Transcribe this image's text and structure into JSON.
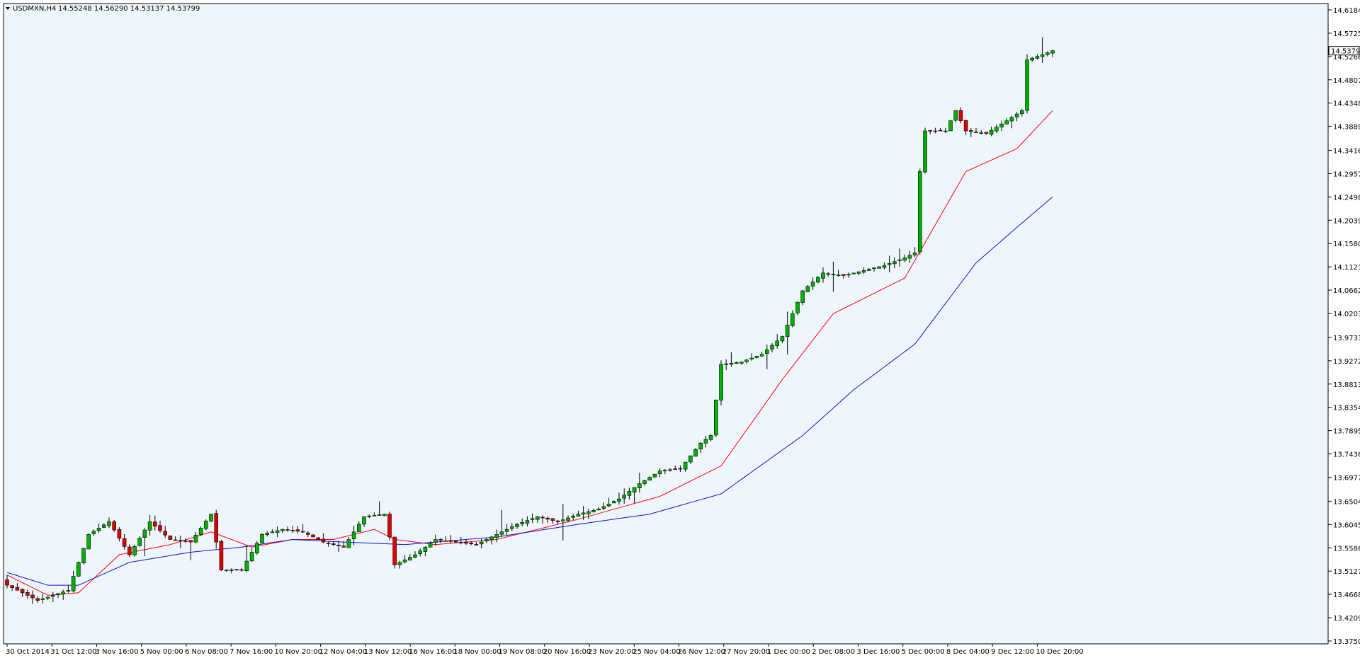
{
  "header": {
    "symbol_timeframe": "USDMXN,H4",
    "ohlc": "14.55248 14.56290 14.53137 14.53799"
  },
  "colors": {
    "background": "#eef6fd",
    "bull_candle": "#00b000",
    "bear_candle": "#e00000",
    "ma_fast": "#ff0000",
    "ma_slow": "#1010d0",
    "axis": "#000000"
  },
  "chart_data": {
    "type": "candlestick",
    "title": "",
    "ylim": [
      13.375,
      14.6184
    ],
    "current_price": "14.53799",
    "y_ticks": [
      "14.61840",
      "14.57250",
      "14.52660",
      "14.48070",
      "14.43480",
      "14.38890",
      "14.34165",
      "14.29575",
      "14.24985",
      "14.20395",
      "14.15805",
      "14.11215",
      "14.06625",
      "14.02035",
      "13.97310",
      "13.92720",
      "13.88130",
      "13.83540",
      "13.78950",
      "13.74360",
      "13.69770",
      "13.65045",
      "13.60455",
      "13.55865",
      "13.51275",
      "13.46685",
      "13.42095",
      "13.37505"
    ],
    "x_ticks": [
      "30 Oct 2014",
      "31 Oct 12:00",
      "3 Nov 16:00",
      "5 Nov 00:00",
      "6 Nov 08:00",
      "7 Nov 16:00",
      "10 Nov 20:00",
      "12 Nov 04:00",
      "13 Nov 12:00",
      "16 Nov 16:00",
      "18 Nov 00:00",
      "19 Nov 08:00",
      "20 Nov 16:00",
      "23 Nov 20:00",
      "25 Nov 04:00",
      "26 Nov 12:00",
      "27 Nov 20:00",
      "1 Dec 00:00",
      "2 Dec 08:00",
      "3 Dec 16:00",
      "5 Dec 00:00",
      "8 Dec 04:00",
      "9 Dec 12:00",
      "10 Dec 20:00"
    ],
    "close_anchors": [
      [
        0,
        13.485
      ],
      [
        6,
        13.455
      ],
      [
        12,
        13.475
      ],
      [
        16,
        13.585
      ],
      [
        20,
        13.61
      ],
      [
        24,
        13.545
      ],
      [
        28,
        13.61
      ],
      [
        32,
        13.575
      ],
      [
        36,
        13.57
      ],
      [
        40,
        13.625
      ],
      [
        42,
        13.515
      ],
      [
        46,
        13.515
      ],
      [
        50,
        13.585
      ],
      [
        54,
        13.595
      ],
      [
        58,
        13.59
      ],
      [
        62,
        13.57
      ],
      [
        66,
        13.56
      ],
      [
        70,
        13.62
      ],
      [
        74,
        13.625
      ],
      [
        75,
        13.58
      ],
      [
        76,
        13.525
      ],
      [
        80,
        13.545
      ],
      [
        84,
        13.575
      ],
      [
        88,
        13.57
      ],
      [
        92,
        13.565
      ],
      [
        96,
        13.585
      ],
      [
        100,
        13.605
      ],
      [
        104,
        13.62
      ],
      [
        108,
        13.61
      ],
      [
        112,
        13.625
      ],
      [
        116,
        13.635
      ],
      [
        120,
        13.655
      ],
      [
        124,
        13.685
      ],
      [
        128,
        13.71
      ],
      [
        132,
        13.715
      ],
      [
        136,
        13.765
      ],
      [
        138,
        13.78
      ],
      [
        140,
        13.92
      ],
      [
        144,
        13.925
      ],
      [
        148,
        13.94
      ],
      [
        152,
        13.975
      ],
      [
        156,
        14.065
      ],
      [
        160,
        14.1
      ],
      [
        164,
        14.095
      ],
      [
        168,
        14.105
      ],
      [
        172,
        14.115
      ],
      [
        176,
        14.13
      ],
      [
        178,
        14.14
      ],
      [
        179,
        14.3
      ],
      [
        180,
        14.38
      ],
      [
        184,
        14.38
      ],
      [
        186,
        14.42
      ],
      [
        188,
        14.38
      ],
      [
        192,
        14.375
      ],
      [
        196,
        14.4
      ],
      [
        199,
        14.42
      ],
      [
        200,
        14.52
      ],
      [
        203,
        14.53
      ],
      [
        205,
        14.538
      ]
    ],
    "ma_fast_anchors": [
      [
        0,
        13.505
      ],
      [
        8,
        13.465
      ],
      [
        14,
        13.47
      ],
      [
        22,
        13.545
      ],
      [
        32,
        13.565
      ],
      [
        40,
        13.59
      ],
      [
        48,
        13.56
      ],
      [
        56,
        13.575
      ],
      [
        64,
        13.575
      ],
      [
        72,
        13.595
      ],
      [
        76,
        13.575
      ],
      [
        84,
        13.565
      ],
      [
        96,
        13.575
      ],
      [
        112,
        13.615
      ],
      [
        128,
        13.66
      ],
      [
        140,
        13.72
      ],
      [
        152,
        13.89
      ],
      [
        162,
        14.02
      ],
      [
        176,
        14.09
      ],
      [
        188,
        14.3
      ],
      [
        198,
        14.345
      ],
      [
        205,
        14.42
      ]
    ],
    "ma_slow_anchors": [
      [
        0,
        13.51
      ],
      [
        8,
        13.485
      ],
      [
        14,
        13.485
      ],
      [
        24,
        13.53
      ],
      [
        36,
        13.55
      ],
      [
        46,
        13.56
      ],
      [
        56,
        13.575
      ],
      [
        66,
        13.57
      ],
      [
        78,
        13.565
      ],
      [
        96,
        13.58
      ],
      [
        112,
        13.605
      ],
      [
        126,
        13.625
      ],
      [
        140,
        13.665
      ],
      [
        156,
        13.78
      ],
      [
        166,
        13.87
      ],
      [
        178,
        13.96
      ],
      [
        190,
        14.12
      ],
      [
        198,
        14.19
      ],
      [
        205,
        14.25
      ]
    ]
  }
}
